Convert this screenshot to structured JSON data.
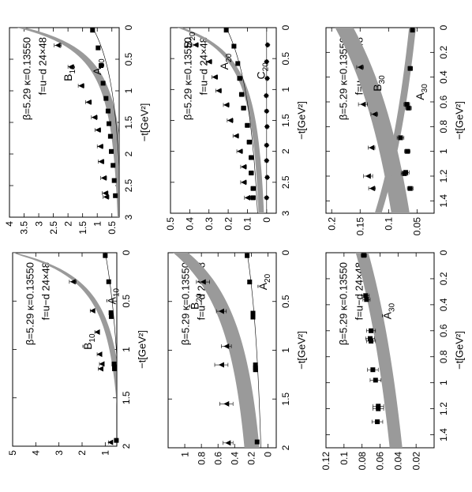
{
  "figure": {
    "caption_lines": [
      "β=5.29 κ=0.13550",
      "f=u−d 24×48"
    ],
    "xlabel": "−t[GeV²]"
  },
  "chart_data": [
    {
      "id": "p1",
      "type": "scatter",
      "xlim": [
        0,
        3
      ],
      "ylim": [
        0.25,
        4
      ],
      "xticks": [
        "0",
        "0.5",
        "1",
        "1.5",
        "2",
        "2.5",
        "3"
      ],
      "yticks": [
        "0.5",
        "1",
        "1.5",
        "2",
        "2.5",
        "3",
        "3.5",
        "4"
      ],
      "xlabel": "−t[GeV²]",
      "annotation": [
        "β=5.29 κ=0.13550",
        "f=u−d 24×48"
      ],
      "grid": false,
      "series": [
        {
          "name": "B10",
          "marker": "triangle",
          "x": [
            0.28,
            0.62,
            0.92,
            1.18,
            1.42,
            1.62,
            1.88,
            2.12,
            2.38,
            2.62,
            2.68
          ],
          "y": [
            2.35,
            1.9,
            1.55,
            1.3,
            1.1,
            0.98,
            0.9,
            0.87,
            0.78,
            0.73,
            0.7
          ],
          "err": [
            0.12,
            0.1,
            0.1,
            0.1,
            0.1,
            0.1,
            0.1,
            0.1,
            0.1,
            0.1,
            0.1
          ]
        },
        {
          "name": "A10",
          "marker": "square",
          "x": [
            0.04,
            0.32,
            0.6,
            0.88,
            1.12,
            1.32,
            1.52,
            1.72,
            1.96,
            2.18,
            2.42,
            2.66
          ],
          "y": [
            1.16,
            0.97,
            0.87,
            0.8,
            0.7,
            0.63,
            0.6,
            0.55,
            0.52,
            0.46,
            0.42,
            0.38
          ],
          "err": [
            0.02,
            0.02,
            0.02,
            0.03,
            0.03,
            0.03,
            0.03,
            0.03,
            0.03,
            0.03,
            0.03,
            0.03
          ]
        }
      ],
      "curves": [
        {
          "series": "B10",
          "type": "band",
          "f0": 3.6,
          "m2": 0.82,
          "p": 2,
          "hw": 0.14
        },
        {
          "series": "A10",
          "type": "line",
          "f0": 1.16,
          "m2": 1.9,
          "p": 2
        }
      ],
      "labels": [
        {
          "text": "B",
          "sub": "10",
          "x": 0.72,
          "y": 2.0
        },
        {
          "text": "A",
          "sub": "10",
          "x": 0.62,
          "y": 1.0
        }
      ]
    },
    {
      "id": "p2",
      "type": "scatter",
      "xlim": [
        0,
        2
      ],
      "ylim": [
        0.5,
        5
      ],
      "xticks": [
        "0",
        "0.5",
        "1",
        "1.5",
        "2"
      ],
      "yticks": [
        "1",
        "2",
        "3",
        "4",
        "5"
      ],
      "xlabel": "−t[GeV²]",
      "annotation": [
        "β=5.29 κ=0.13550",
        "f=u−d 24×48"
      ],
      "grid": false,
      "series": [
        {
          "name": "B̄10",
          "marker": "triangle",
          "x": [
            0.3,
            0.6,
            0.82,
            1.05,
            1.15,
            1.2,
            1.96
          ],
          "y": [
            2.4,
            1.55,
            1.35,
            1.25,
            1.15,
            1.2,
            0.78
          ],
          "err": [
            0.15,
            0.1,
            0.1,
            0.1,
            0.1,
            0.1,
            0.08
          ]
        },
        {
          "name": "Ā10",
          "marker": "square",
          "x": [
            0.03,
            0.3,
            0.62,
            0.66,
            1.15,
            1.18,
            1.2,
            1.94
          ],
          "y": [
            1.0,
            0.85,
            0.75,
            0.74,
            0.62,
            0.6,
            0.6,
            0.52
          ],
          "err": [
            0.02,
            0.02,
            0.03,
            0.03,
            0.03,
            0.03,
            0.03,
            0.03
          ]
        }
      ],
      "curves": [
        {
          "series": "B̄10",
          "type": "band",
          "f0": 5.0,
          "m2": 0.6,
          "p": 2,
          "hw": 0.12
        },
        {
          "series": "Ā10",
          "type": "line",
          "f0": 1.0,
          "m2": 2.6,
          "p": 2
        }
      ],
      "labels": [
        {
          "text": "B̄",
          "sub": "10",
          "x": 0.92,
          "y": 1.75
        },
        {
          "text": "Ā",
          "sub": "10",
          "x": 0.45,
          "y": 0.72
        }
      ]
    },
    {
      "id": "p3",
      "type": "scatter",
      "xlim": [
        0,
        3
      ],
      "ylim": [
        -0.05,
        0.5
      ],
      "xticks": [
        "0",
        "0.5",
        "1",
        "1.5",
        "2",
        "2.5",
        "3"
      ],
      "yticks": [
        "0",
        "0.1",
        "0.2",
        "0.3",
        "0.4",
        "0.5"
      ],
      "xlabel": "−t[GeV²]",
      "annotation": [
        "β=5.29 κ=0.13550",
        "f=u−d 24×48"
      ],
      "grid": false,
      "series": [
        {
          "name": "B20",
          "marker": "triangle",
          "x": [
            0.28,
            0.55,
            0.8,
            1.02,
            1.25,
            1.5,
            1.75,
            2.0,
            2.25,
            2.5,
            2.75
          ],
          "y": [
            0.37,
            0.3,
            0.27,
            0.25,
            0.21,
            0.19,
            0.16,
            0.14,
            0.12,
            0.12,
            0.1
          ],
          "err": [
            0.015,
            0.015,
            0.015,
            0.015,
            0.015,
            0.015,
            0.015,
            0.015,
            0.015,
            0.015,
            0.015
          ]
        },
        {
          "name": "A20",
          "marker": "square",
          "x": [
            0.04,
            0.3,
            0.58,
            0.82,
            1.08,
            1.3,
            1.58,
            1.85,
            2.1,
            2.35,
            2.6,
            2.75
          ],
          "y": [
            0.21,
            0.17,
            0.15,
            0.14,
            0.13,
            0.12,
            0.1,
            0.09,
            0.08,
            0.08,
            0.07,
            0.07
          ],
          "err": [
            0.008,
            0.01,
            0.01,
            0.012,
            0.012,
            0.012,
            0.012,
            0.012,
            0.012,
            0.012,
            0.012,
            0.012
          ]
        },
        {
          "name": "C20",
          "marker": "diamond",
          "x": [
            0.28,
            0.55,
            0.82,
            1.1,
            1.35,
            1.6,
            1.9,
            2.15,
            2.42,
            2.75
          ],
          "y": [
            -0.005,
            0.0,
            -0.003,
            0.002,
            0.0,
            -0.002,
            0.0,
            0.0,
            -0.003,
            0.0
          ],
          "err": [
            0.008,
            0.008,
            0.008,
            0.008,
            0.008,
            0.008,
            0.008,
            0.008,
            0.008,
            0.008
          ]
        }
      ],
      "curves": [
        {
          "series": "B20",
          "type": "band",
          "f0": 0.45,
          "m2": 1.0,
          "p": 2,
          "hw": 0.014
        },
        {
          "series": "A20",
          "type": "line",
          "f0": 0.21,
          "m2": 2.7,
          "p": 2
        },
        {
          "series": "C20",
          "type": "hline",
          "y": 0.0
        }
      ],
      "labels": [
        {
          "text": "B",
          "sub": "20",
          "x": 0.2,
          "y": 0.41
        },
        {
          "text": "A",
          "sub": "20",
          "x": 0.55,
          "y": 0.22
        },
        {
          "text": "C",
          "sub": "20",
          "x": 0.7,
          "y": 0.03
        }
      ]
    },
    {
      "id": "p4",
      "type": "scatter",
      "xlim": [
        0,
        2
      ],
      "ylim": [
        -0.1,
        1.2
      ],
      "xticks": [
        "0",
        "0.5",
        "1",
        "1.5",
        "2"
      ],
      "yticks": [
        "0",
        "0.2",
        "0.4",
        "0.6",
        "0.8",
        "1"
      ],
      "xlabel": "−t[GeV²]",
      "annotation": [
        "β=5.29 κ=0.13550",
        "f=u−d 24×48"
      ],
      "grid": false,
      "series": [
        {
          "name": "B̄20",
          "marker": "triangle",
          "x": [
            0.3,
            0.6,
            0.96,
            1.15,
            1.55,
            1.95
          ],
          "y": [
            0.78,
            0.56,
            0.5,
            0.56,
            0.5,
            0.48
          ],
          "err": [
            0.08,
            0.06,
            0.06,
            0.08,
            0.08,
            0.06
          ]
        },
        {
          "name": "Ā20",
          "marker": "square",
          "x": [
            0.03,
            0.3,
            0.62,
            0.66,
            1.15,
            1.18,
            1.2,
            1.94
          ],
          "y": [
            0.25,
            0.22,
            0.18,
            0.18,
            0.15,
            0.15,
            0.15,
            0.13
          ],
          "err": [
            0.01,
            0.012,
            0.015,
            0.015,
            0.015,
            0.015,
            0.015,
            0.015
          ]
        }
      ],
      "curves": [
        {
          "series": "B̄20",
          "type": "band",
          "f0": 1.05,
          "m2": 1.5,
          "p": 2,
          "hw": 0.09
        },
        {
          "series": "Ā20",
          "type": "line",
          "f0": 0.25,
          "m2": 2.8,
          "p": 2
        }
      ],
      "labels": [
        {
          "text": "B̄",
          "sub": "20",
          "x": 0.5,
          "y": 0.88
        },
        {
          "text": "Ā",
          "sub": "20",
          "x": 0.3,
          "y": 0.06
        }
      ]
    },
    {
      "id": "p5",
      "type": "scatter",
      "xlim": [
        0,
        1.5
      ],
      "ylim": [
        0.02,
        0.21
      ],
      "xticks": [
        "0",
        "0.2",
        "0.4",
        "0.6",
        "0.8",
        "1",
        "1.2",
        "1.4"
      ],
      "yticks": [
        "0.05",
        "0.1",
        "0.15",
        "0.2"
      ],
      "xlabel": "−t[GeV²]",
      "annotation": [
        "β=5.29 κ=0.13550",
        "f=u−d 24×48"
      ],
      "grid": false,
      "series": [
        {
          "name": "B30",
          "marker": "triangle",
          "x": [
            0.32,
            0.62,
            0.7,
            0.97,
            1.2,
            1.3
          ],
          "y": [
            0.15,
            0.145,
            0.125,
            0.13,
            0.136,
            0.129
          ],
          "err": [
            0.006,
            0.008,
            0.006,
            0.006,
            0.008,
            0.006
          ]
        },
        {
          "name": "A30",
          "marker": "square",
          "x": [
            0.02,
            0.33,
            0.62,
            0.65,
            0.89,
            1.0,
            1.17,
            1.18,
            1.3
          ],
          "y": [
            0.058,
            0.062,
            0.068,
            0.065,
            0.079,
            0.067,
            0.07,
            0.072,
            0.062
          ],
          "err": [
            0.003,
            0.004,
            0.005,
            0.005,
            0.006,
            0.005,
            0.006,
            0.006,
            0.005
          ]
        }
      ],
      "curves": [
        {
          "series": "B30",
          "type": "band",
          "f0": 0.178,
          "m2": 3.0,
          "p": 2,
          "hw": 0.016
        },
        {
          "series": "A30",
          "type": "band",
          "f0": 0.058,
          "m2": -5.0,
          "p": 2,
          "hw": 0.006
        }
      ],
      "labels": [
        {
          "text": "B",
          "sub": "30",
          "x": 0.45,
          "y": 0.12
        },
        {
          "text": "A",
          "sub": "30",
          "x": 0.52,
          "y": 0.045
        }
      ]
    },
    {
      "id": "p6",
      "type": "scatter",
      "xlim": [
        0,
        1.5
      ],
      "ylim": [
        0,
        0.12
      ],
      "xticks": [
        "0",
        "0.2",
        "0.4",
        "0.6",
        "0.8",
        "1",
        "1.2",
        "1.4"
      ],
      "yticks": [
        "0.02",
        "0.04",
        "0.06",
        "0.08",
        "0.1",
        "0.12"
      ],
      "xlabel": "−t[GeV²]",
      "annotation": [
        "β=5.29 κ=0.13550",
        "f=u−d 24×48"
      ],
      "grid": false,
      "series": [
        {
          "name": "Ā30",
          "marker": "square",
          "x": [
            0.02,
            0.33,
            0.36,
            0.6,
            0.66,
            0.68,
            0.9,
            0.98,
            1.18,
            1.2,
            1.3
          ],
          "y": [
            0.078,
            0.076,
            0.075,
            0.07,
            0.071,
            0.07,
            0.068,
            0.065,
            0.062,
            0.062,
            0.063
          ],
          "err": [
            0.003,
            0.004,
            0.004,
            0.005,
            0.005,
            0.005,
            0.006,
            0.006,
            0.006,
            0.006,
            0.006
          ]
        }
      ],
      "curves": [
        {
          "series": "Ā30",
          "type": "band",
          "f0": 0.08,
          "m2": 4.0,
          "p": 2,
          "hw": 0.007
        }
      ],
      "labels": [
        {
          "text": "Ā",
          "sub": "30",
          "x": 0.45,
          "y": 0.052
        }
      ]
    }
  ]
}
